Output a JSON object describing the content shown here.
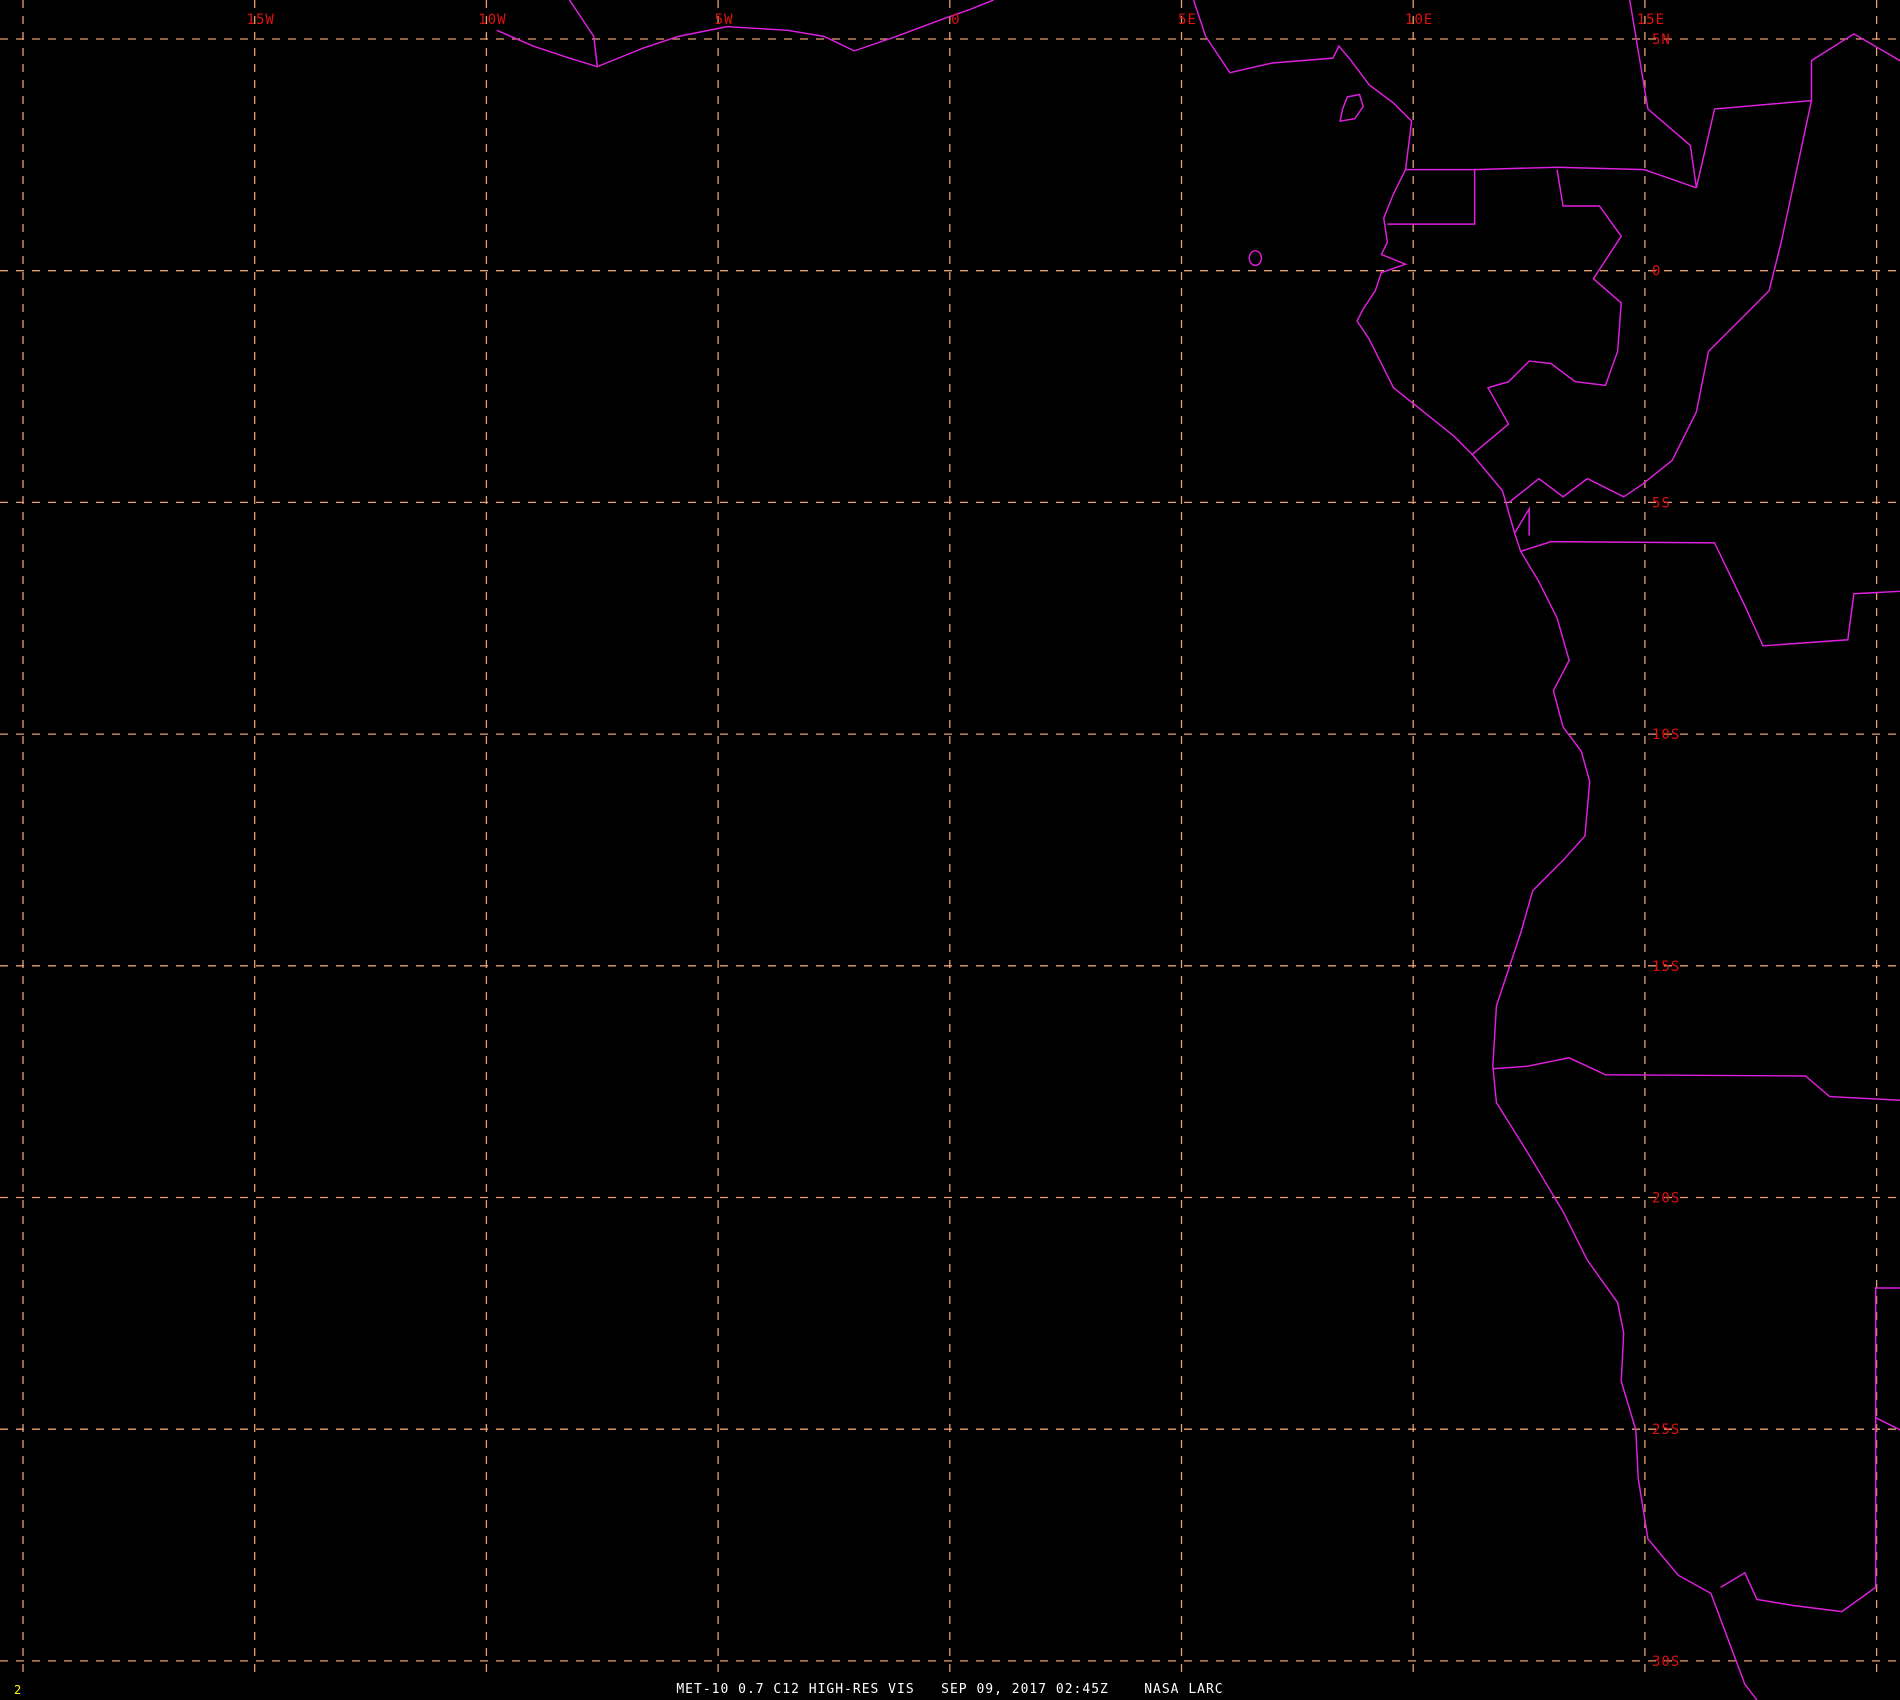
{
  "caption": {
    "satellite": "MET-10 0.7 C12 HIGH-RES VIS",
    "datetime": "SEP 09, 2017 02:45Z",
    "source": "NASA LARC"
  },
  "frame_number": "2",
  "longitude_labels": [
    "15W",
    "10W",
    "5W",
    "0",
    "5E",
    "10E",
    "15E"
  ],
  "latitude_labels": [
    "5N",
    "0",
    "5S",
    "10S",
    "15S",
    "20S",
    "25S",
    "30S"
  ],
  "colors": {
    "background": "#000000",
    "grid": "#e8a070",
    "labels": "#e01010",
    "coastline": "#e020e0",
    "frame_number": "#ffff00",
    "caption": "#ffffff"
  }
}
